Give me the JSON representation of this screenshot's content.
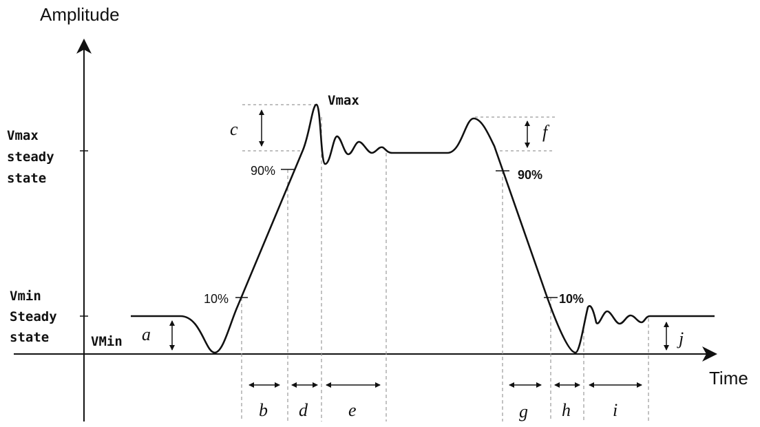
{
  "axes": {
    "y_label": "Amplitude",
    "x_label": "Time"
  },
  "left_labels": {
    "vmax_steady": [
      "Vmax",
      "steady",
      "state"
    ],
    "vmin_steady": [
      "Vmin",
      "Steady",
      "state"
    ],
    "vmin_point": "VMin"
  },
  "peak_label": "Vmax",
  "percent_labels": {
    "rise_90": "90%",
    "rise_10": "10%",
    "fall_90": "90%",
    "fall_10": "10%"
  },
  "interval_labels": {
    "a": "a",
    "b": "b",
    "c": "c",
    "d": "d",
    "e": "e",
    "f": "f",
    "g": "g",
    "h": "h",
    "i": "i",
    "j": "j"
  },
  "colors": {
    "waveform": "#111111",
    "guide": "#999999",
    "text": "#111111"
  }
}
